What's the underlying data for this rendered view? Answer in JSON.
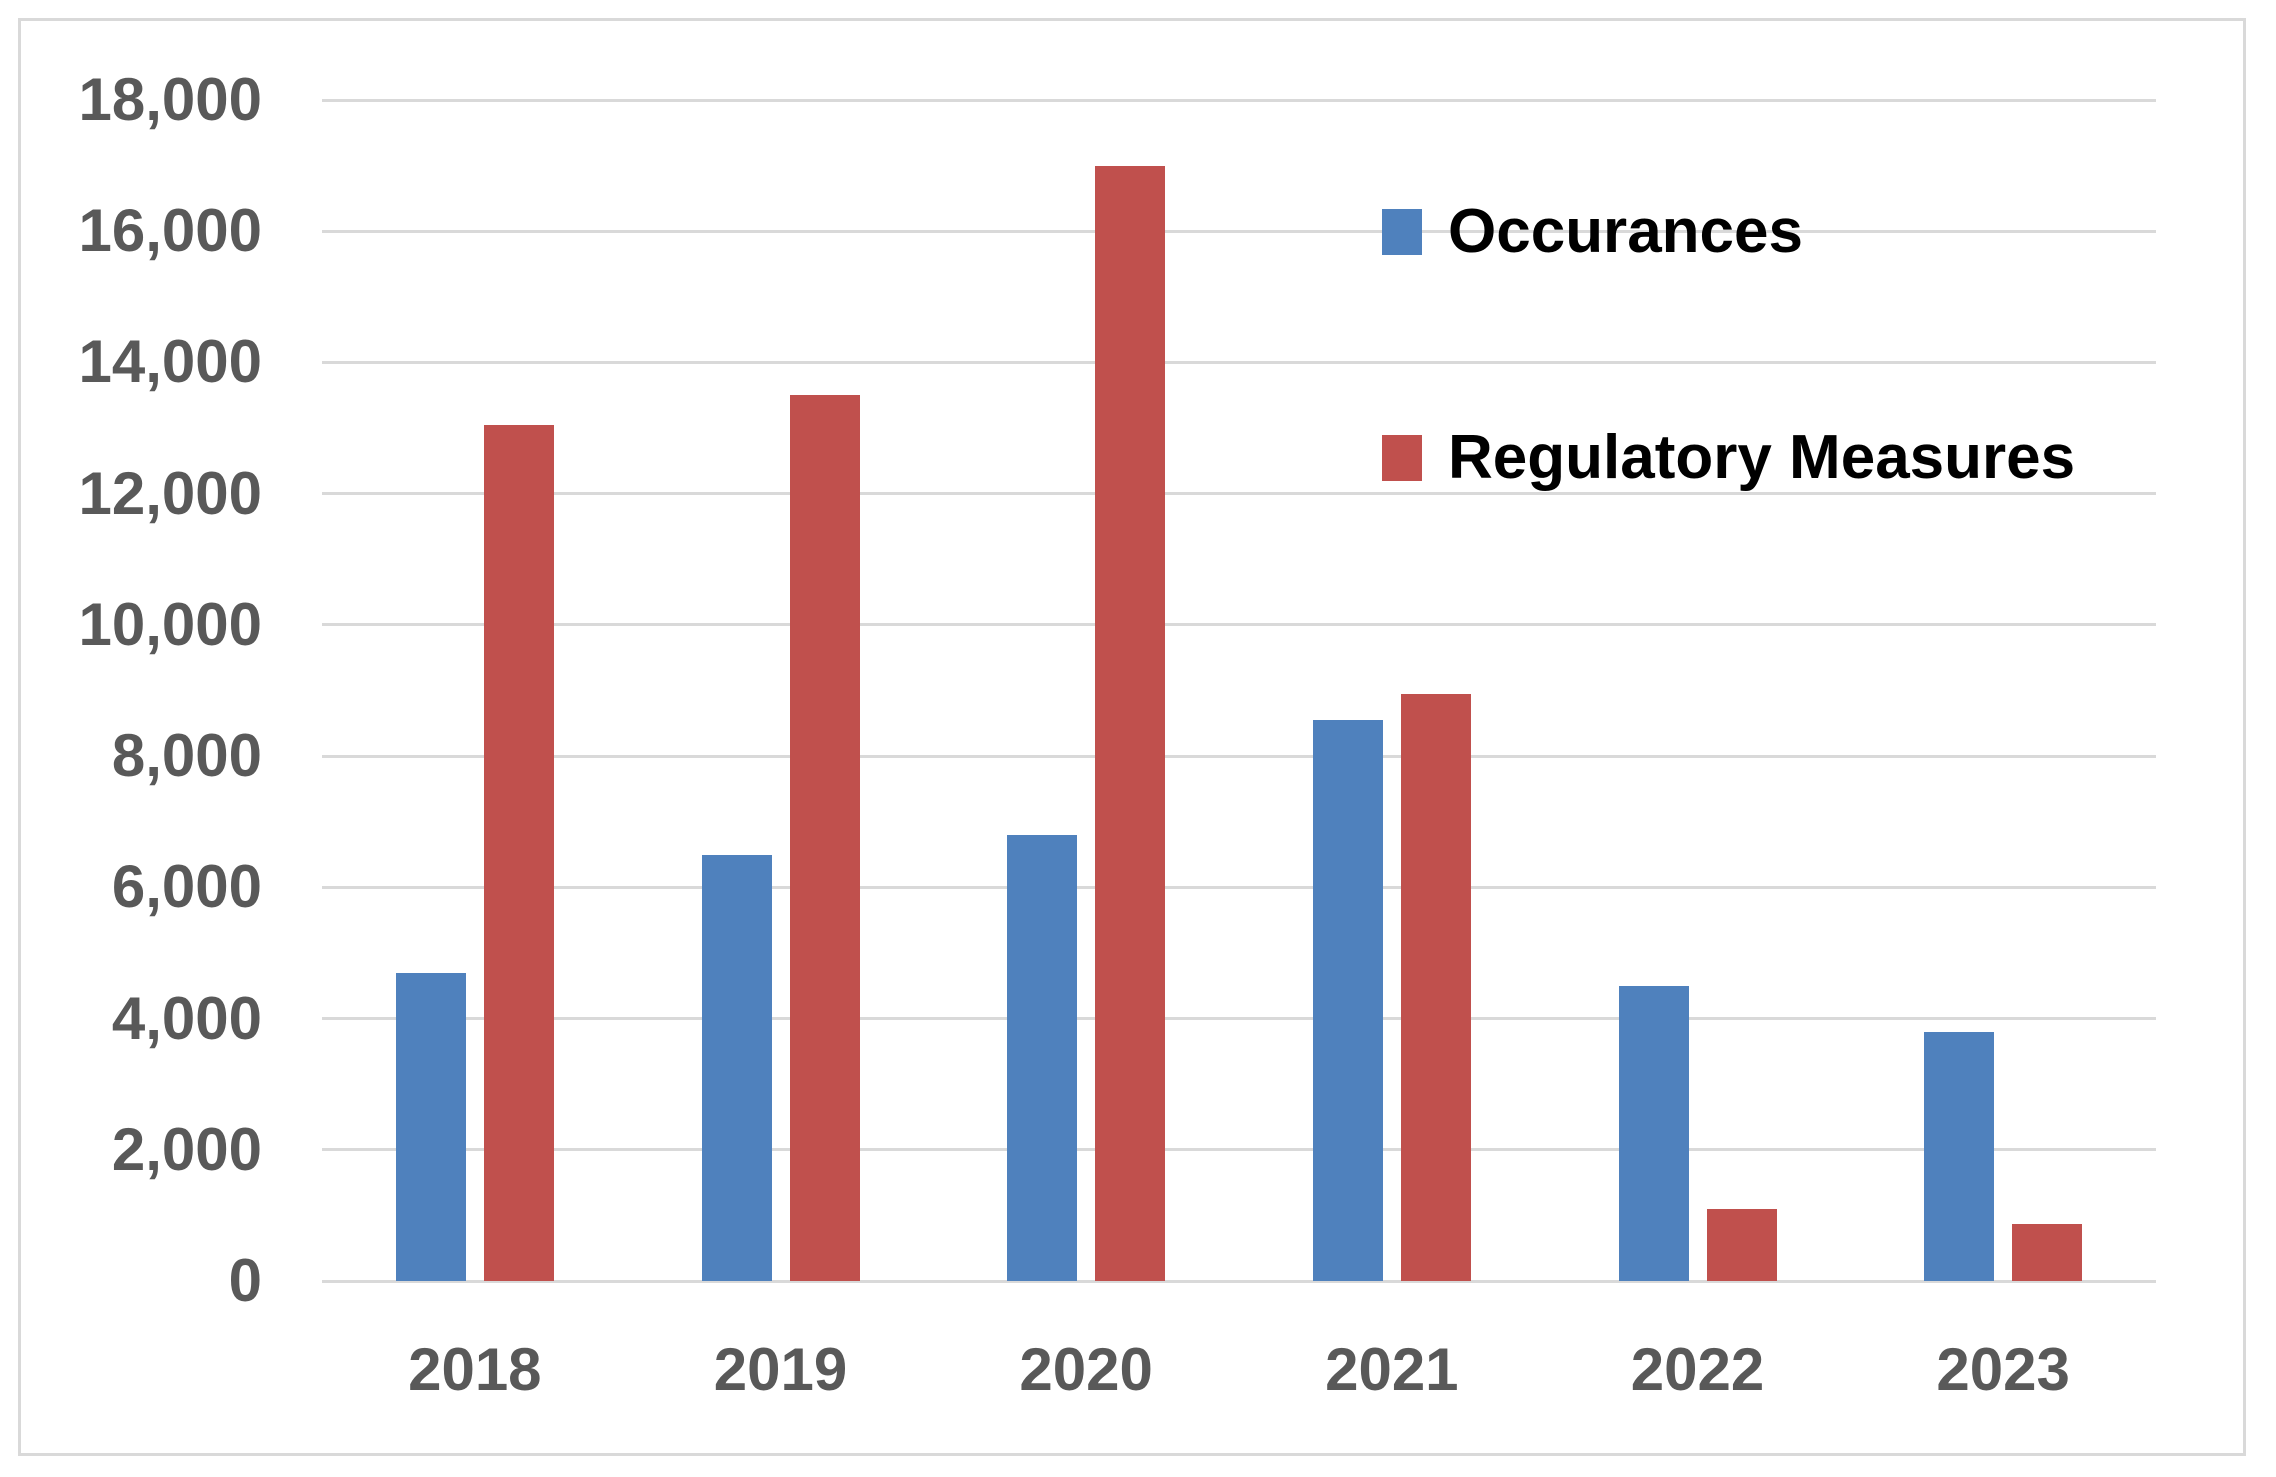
{
  "chart_data": {
    "type": "bar",
    "title": "",
    "xlabel": "",
    "ylabel": "",
    "categories": [
      "2018",
      "2019",
      "2020",
      "2021",
      "2022",
      "2023"
    ],
    "series": [
      {
        "name": "Occurances",
        "color": "#4F81BD",
        "values": [
          4700,
          6500,
          6800,
          8550,
          4500,
          3800
        ]
      },
      {
        "name": "Regulatory Measures",
        "color": "#C0504D",
        "values": [
          13050,
          13500,
          17000,
          8950,
          1100,
          870
        ]
      }
    ],
    "ylim": [
      0,
      18000
    ],
    "yticks": [
      {
        "value": 0,
        "label": "0"
      },
      {
        "value": 2000,
        "label": "2,000"
      },
      {
        "value": 4000,
        "label": "4,000"
      },
      {
        "value": 6000,
        "label": "6,000"
      },
      {
        "value": 8000,
        "label": "8,000"
      },
      {
        "value": 10000,
        "label": "10,000"
      },
      {
        "value": 12000,
        "label": "12,000"
      },
      {
        "value": 14000,
        "label": "14,000"
      },
      {
        "value": 16000,
        "label": "16,000"
      },
      {
        "value": 18000,
        "label": "18,000"
      }
    ],
    "grid": "horizontal",
    "legend_position": "inside-top-right"
  },
  "colors": {
    "background": "#FFFFFF",
    "border": "#D9D9D9",
    "gridline": "#D9D9D9",
    "axis_text": "#595959",
    "legend_text": "#000000"
  }
}
